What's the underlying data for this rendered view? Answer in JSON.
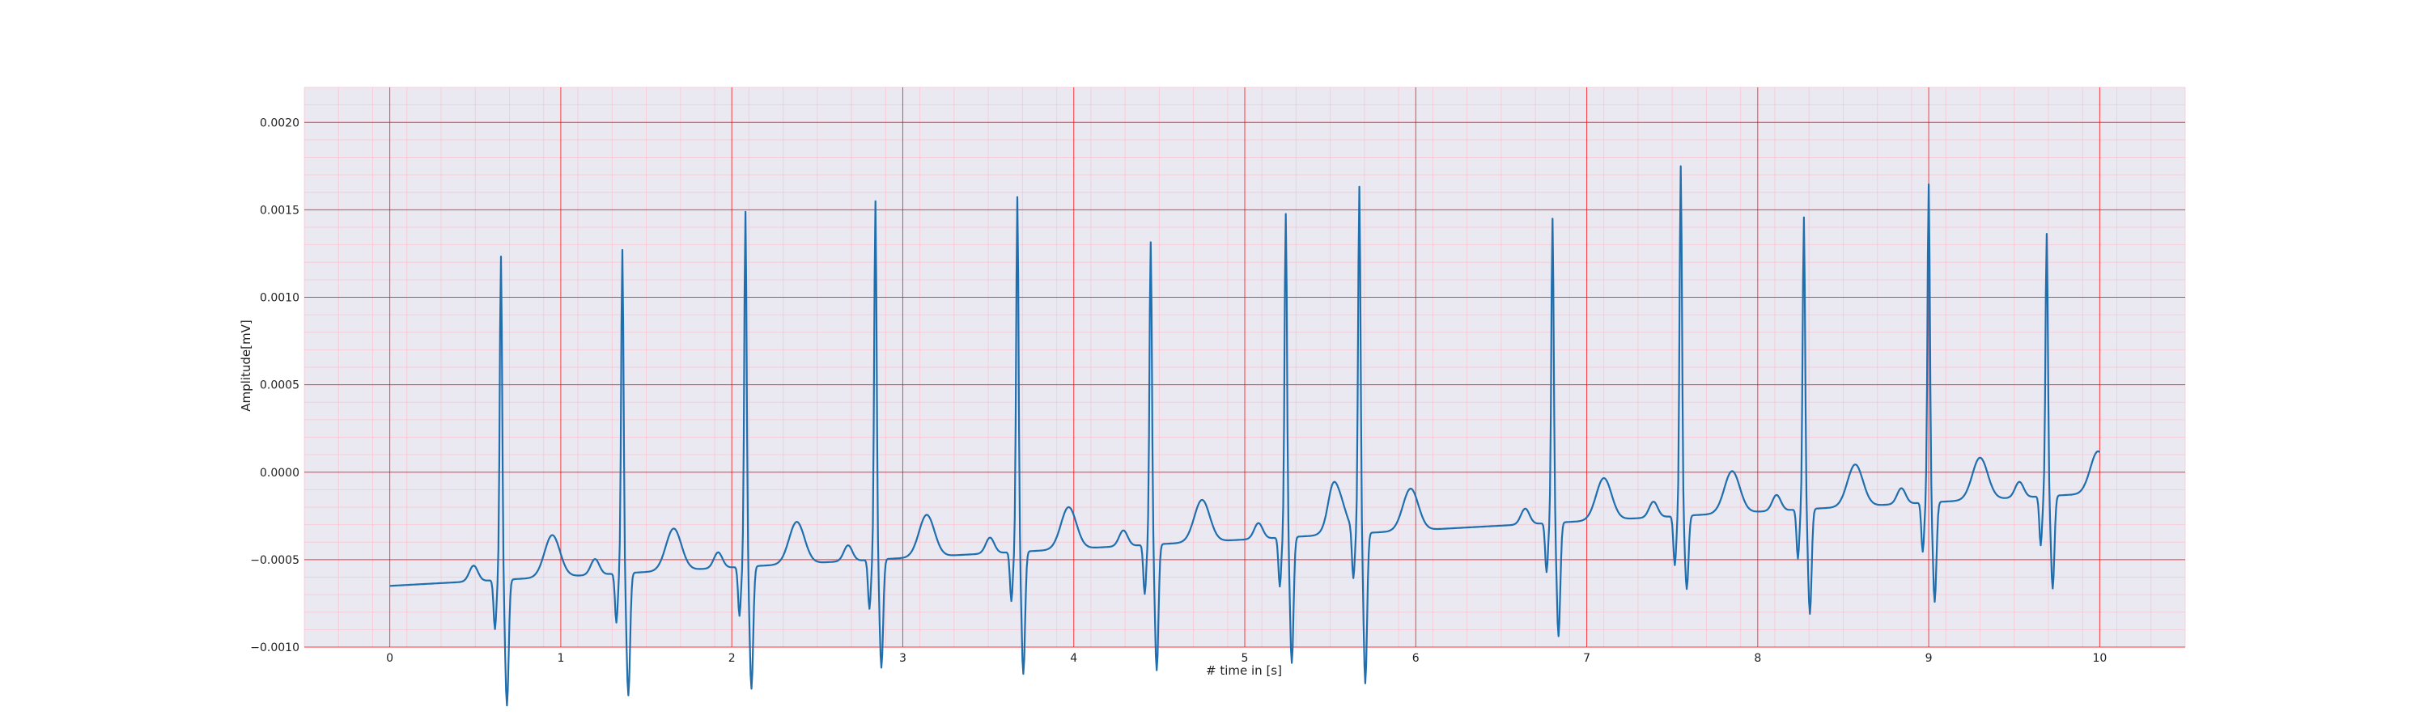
{
  "chart_data": {
    "type": "line",
    "title": "",
    "xlabel": "# time in [s]",
    "ylabel": "Amplitude[mV]",
    "xlim": [
      -0.5,
      10.5
    ],
    "ylim": [
      -0.001,
      0.0022
    ],
    "x_ticks": [
      0,
      1,
      2,
      3,
      4,
      5,
      6,
      7,
      8,
      9,
      10
    ],
    "x_tick_labels": [
      "0",
      "1",
      "2",
      "3",
      "4",
      "5",
      "6",
      "7",
      "8",
      "9",
      "10"
    ],
    "y_ticks": [
      -0.001,
      -0.0005,
      0.0,
      0.0005,
      0.001,
      0.0015,
      0.002
    ],
    "y_tick_labels": [
      "−0.0010",
      "−0.0005",
      "0.0000",
      "0.0005",
      "0.0010",
      "0.0015",
      "0.0020"
    ],
    "grid": true,
    "minor_grid": true,
    "plot_background": "#eae9f2",
    "major_grid_color": "#ff0000",
    "minor_grid_color": "#ffb6c1",
    "line_color": "#1f6faf",
    "series": [
      {
        "sample_interval_s": 0.005,
        "duration_s": 10,
        "baseline_start": -0.00065,
        "baseline_end": -0.00012,
        "beats": [
          {
            "t": 0.65,
            "r": 0.00185,
            "s": -0.00072
          },
          {
            "t": 1.36,
            "r": 0.00185,
            "s": -0.0007
          },
          {
            "t": 2.08,
            "r": 0.00203,
            "s": -0.0007
          },
          {
            "t": 2.84,
            "r": 0.00205,
            "s": -0.00062
          },
          {
            "t": 3.67,
            "r": 0.00203,
            "s": -0.0007
          },
          {
            "t": 4.45,
            "r": 0.00173,
            "s": -0.00072
          },
          {
            "t": 5.24,
            "r": 0.00185,
            "s": -0.00072
          },
          {
            "t": 5.67,
            "r": 0.00198,
            "s": -0.00086
          },
          {
            "t": 6.8,
            "r": 0.00174,
            "s": -0.00065
          },
          {
            "t": 7.55,
            "r": 0.002,
            "s": -0.00042
          },
          {
            "t": 8.27,
            "r": 0.00167,
            "s": -0.0006
          },
          {
            "t": 9.0,
            "r": 0.00182,
            "s": -0.00057
          },
          {
            "t": 9.69,
            "r": 0.0015,
            "s": -0.00053
          }
        ]
      }
    ]
  }
}
